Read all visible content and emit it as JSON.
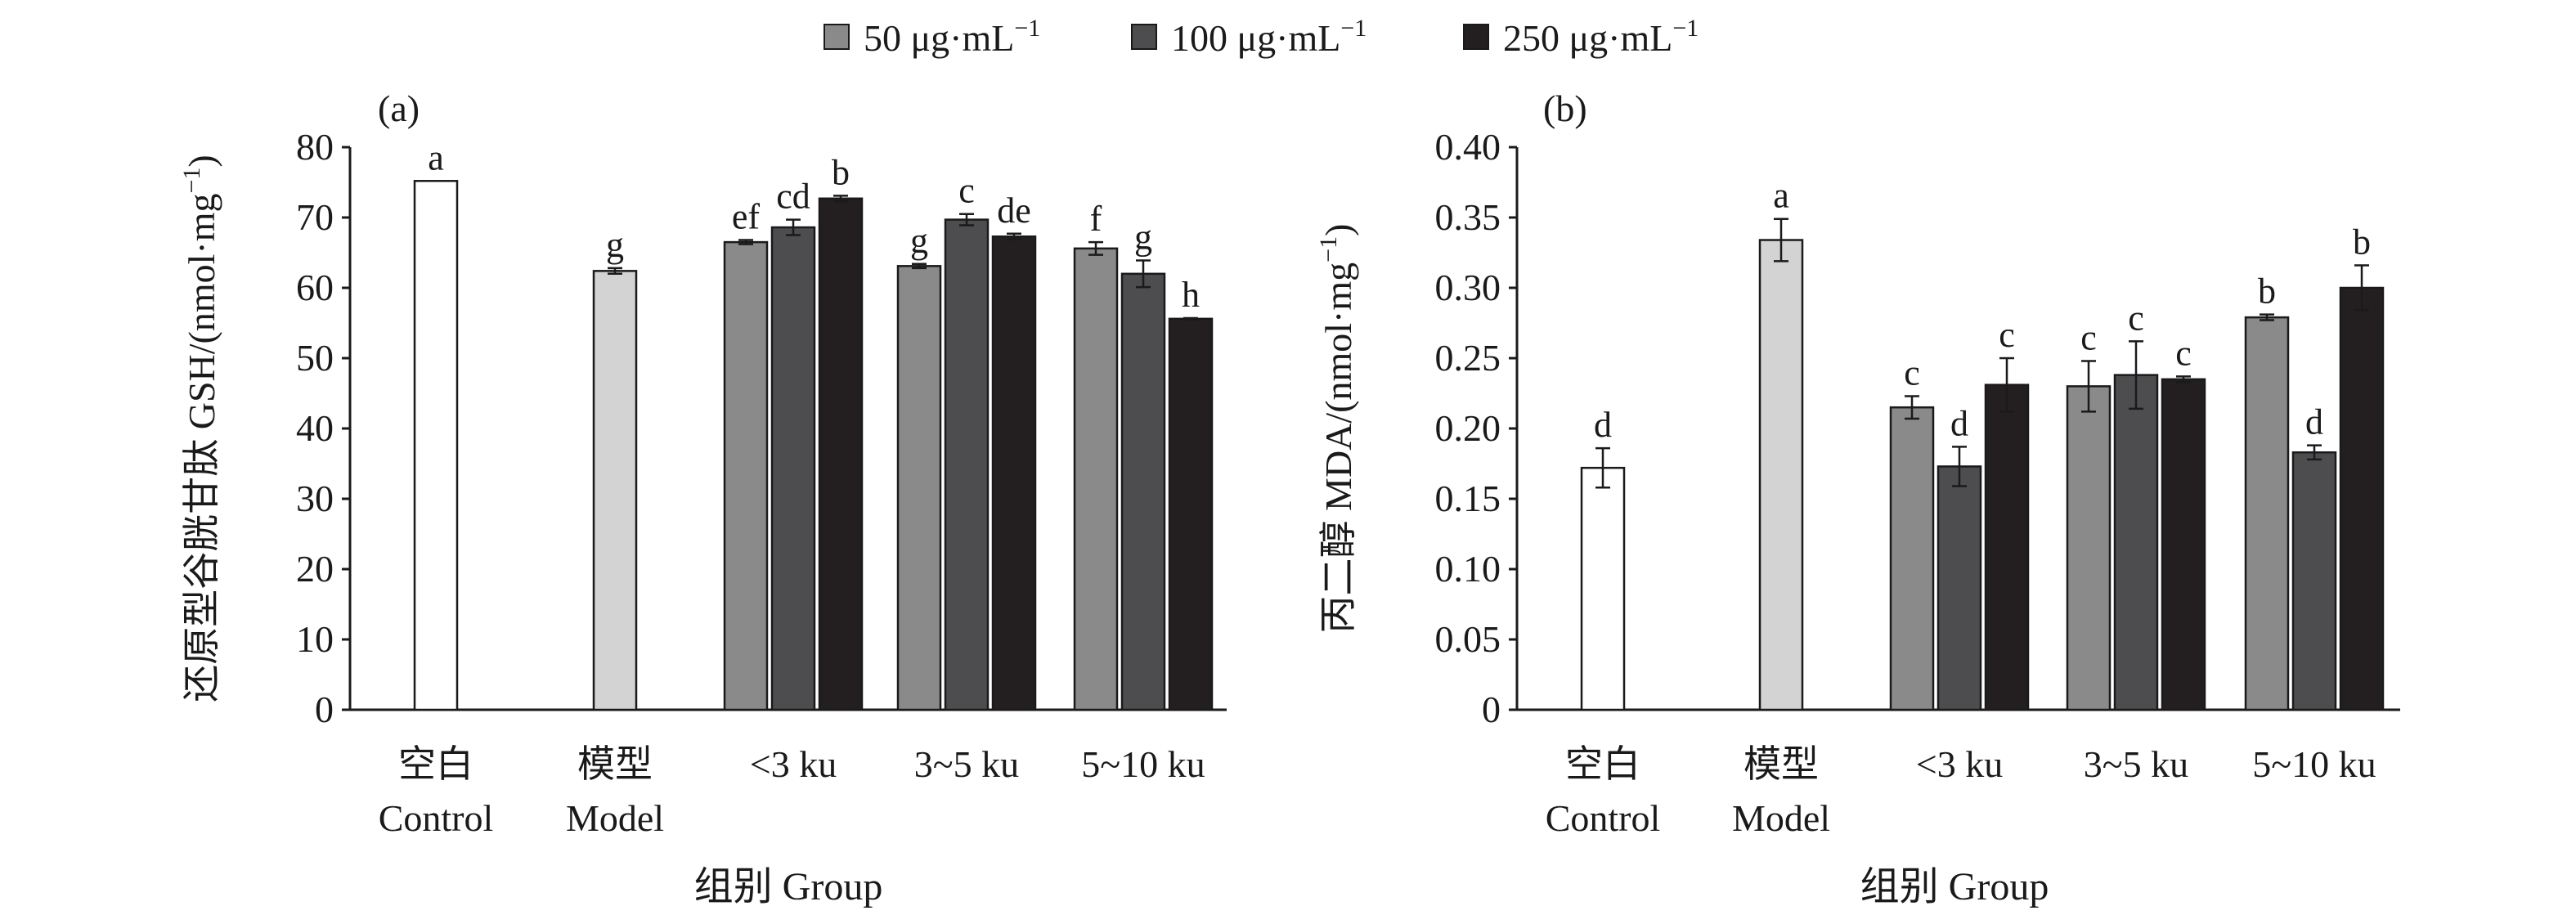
{
  "legend": [
    {
      "label": "50 μg·mL",
      "sup": "−1",
      "color": "#8a8a8a"
    },
    {
      "label": "100 μg·mL",
      "sup": "−1",
      "color": "#4d4d4f"
    },
    {
      "label": "250 μg·mL",
      "sup": "−1",
      "color": "#231f20"
    }
  ],
  "control_model_colors": {
    "control": "#ffffff",
    "model": "#d3d3d3"
  },
  "chart_data": [
    {
      "type": "bar",
      "panel_label": "(a)",
      "ylabel": "还原型谷胱甘肽 GSH/(nmol·mg",
      "ylabel_sup": "−1",
      "ylabel_close": ")",
      "xlabel": "组别 Group",
      "ylim": [
        0,
        80
      ],
      "yticks": [
        "0",
        "10",
        "20",
        "30",
        "40",
        "50",
        "60",
        "70",
        "80"
      ],
      "categories": [
        {
          "line1": "空白",
          "line2": "Control"
        },
        {
          "line1": "模型",
          "line2": "Model"
        },
        {
          "line1": "<3 ku",
          "line2": ""
        },
        {
          "line1": "3~5 ku",
          "line2": ""
        },
        {
          "line1": "5~10 ku",
          "line2": ""
        }
      ],
      "bars": [
        {
          "category": 0,
          "series": "control",
          "value": 75.2,
          "error": 0,
          "sig": "a"
        },
        {
          "category": 1,
          "series": "model",
          "value": 62.4,
          "error": 0.4,
          "sig": "g"
        },
        {
          "category": 2,
          "series": 0,
          "value": 66.5,
          "error": 0.3,
          "sig": "ef"
        },
        {
          "category": 2,
          "series": 1,
          "value": 68.6,
          "error": 1.1,
          "sig": "cd"
        },
        {
          "category": 2,
          "series": 2,
          "value": 72.7,
          "error": 0.4,
          "sig": "b"
        },
        {
          "category": 3,
          "series": 0,
          "value": 63.1,
          "error": 0.3,
          "sig": "g"
        },
        {
          "category": 3,
          "series": 1,
          "value": 69.7,
          "error": 0.8,
          "sig": "c"
        },
        {
          "category": 3,
          "series": 2,
          "value": 67.3,
          "error": 0.4,
          "sig": "de"
        },
        {
          "category": 4,
          "series": 0,
          "value": 65.6,
          "error": 0.9,
          "sig": "f"
        },
        {
          "category": 4,
          "series": 1,
          "value": 62.0,
          "error": 1.9,
          "sig": "g"
        },
        {
          "category": 4,
          "series": 2,
          "value": 55.6,
          "error": 0.1,
          "sig": "h"
        }
      ]
    },
    {
      "type": "bar",
      "panel_label": "(b)",
      "ylabel": "丙二醇 MDA/(nmol·mg",
      "ylabel_sup": "−1",
      "ylabel_close": ")",
      "xlabel": "组别 Group",
      "ylim": [
        0,
        0.4
      ],
      "yticks": [
        "0",
        "0.05",
        "0.10",
        "0.15",
        "0.20",
        "0.25",
        "0.30",
        "0.35",
        "0.40"
      ],
      "categories": [
        {
          "line1": "空白",
          "line2": "Control"
        },
        {
          "line1": "模型",
          "line2": "Model"
        },
        {
          "line1": "<3 ku",
          "line2": ""
        },
        {
          "line1": "3~5 ku",
          "line2": ""
        },
        {
          "line1": "5~10 ku",
          "line2": ""
        }
      ],
      "bars": [
        {
          "category": 0,
          "series": "control",
          "value": 0.172,
          "error": 0.014,
          "sig": "d"
        },
        {
          "category": 1,
          "series": "model",
          "value": 0.334,
          "error": 0.015,
          "sig": "a"
        },
        {
          "category": 2,
          "series": 0,
          "value": 0.215,
          "error": 0.008,
          "sig": "c"
        },
        {
          "category": 2,
          "series": 1,
          "value": 0.173,
          "error": 0.014,
          "sig": "d"
        },
        {
          "category": 2,
          "series": 2,
          "value": 0.231,
          "error": 0.019,
          "sig": "c"
        },
        {
          "category": 3,
          "series": 0,
          "value": 0.23,
          "error": 0.018,
          "sig": "c"
        },
        {
          "category": 3,
          "series": 1,
          "value": 0.238,
          "error": 0.024,
          "sig": "c"
        },
        {
          "category": 3,
          "series": 2,
          "value": 0.235,
          "error": 0.002,
          "sig": "c"
        },
        {
          "category": 4,
          "series": 0,
          "value": 0.279,
          "error": 0.002,
          "sig": "b"
        },
        {
          "category": 4,
          "series": 1,
          "value": 0.183,
          "error": 0.005,
          "sig": "d"
        },
        {
          "category": 4,
          "series": 2,
          "value": 0.3,
          "error": 0.016,
          "sig": "b"
        }
      ]
    }
  ]
}
